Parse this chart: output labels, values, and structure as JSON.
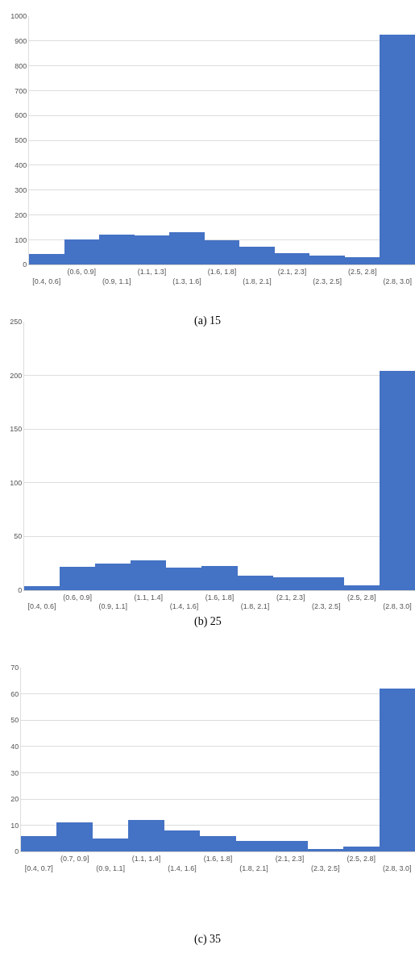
{
  "chart_data": [
    {
      "type": "bar",
      "title": "(a) 15",
      "categories": [
        "[0.4, 0.6]",
        "(0.6, 0.9]",
        "(0.9, 1.1]",
        "(1.1, 1.3]",
        "(1.3, 1.6]",
        "(1.6, 1.8]",
        "(1.8, 2.1]",
        "(2.1, 2.3]",
        "(2.3, 2.5]",
        "(2.5, 2.8]",
        "(2.8, 3.0]"
      ],
      "values": [
        45,
        103,
        123,
        119,
        132,
        100,
        73,
        48,
        38,
        31,
        926
      ],
      "color": "#4472c4",
      "ylim": [
        0,
        1000
      ],
      "yticks": [
        0,
        100,
        200,
        300,
        400,
        500,
        600,
        700,
        800,
        900,
        1000
      ],
      "grid": "y"
    },
    {
      "type": "bar",
      "title": "(b) 25",
      "categories": [
        "[0.4, 0.6]",
        "(0.6, 0.9]",
        "(0.9, 1.1]",
        "(1.1, 1.4]",
        "(1.4, 1.6]",
        "(1.6, 1.8]",
        "(1.8, 2.1]",
        "(2.1, 2.3]",
        "(2.3, 2.5]",
        "(2.5, 2.8]",
        "(2.8, 3.0]"
      ],
      "values": [
        4,
        22,
        25,
        28,
        21,
        23,
        14,
        12,
        12,
        5,
        204
      ],
      "color": "#4472c4",
      "ylim": [
        0,
        250
      ],
      "yticks": [
        0,
        50,
        100,
        150,
        200,
        250
      ],
      "grid": "y"
    },
    {
      "type": "bar",
      "title": "(c) 35",
      "categories": [
        "[0.4, 0.7]",
        "(0.7, 0.9]",
        "(0.9, 1.1]",
        "(1.1, 1.4]",
        "(1.4, 1.6]",
        "(1.6, 1.8]",
        "(1.8, 2.1]",
        "(2.1, 2.3]",
        "(2.3, 2.5]",
        "(2.5, 2.8]",
        "(2.8, 3.0]"
      ],
      "values": [
        6,
        11,
        5,
        12,
        8,
        6,
        4,
        4,
        1,
        2,
        62
      ],
      "color": "#4472c4",
      "ylim": [
        0,
        70
      ],
      "yticks": [
        0,
        10,
        20,
        30,
        40,
        50,
        60,
        70
      ],
      "grid": "y"
    }
  ]
}
